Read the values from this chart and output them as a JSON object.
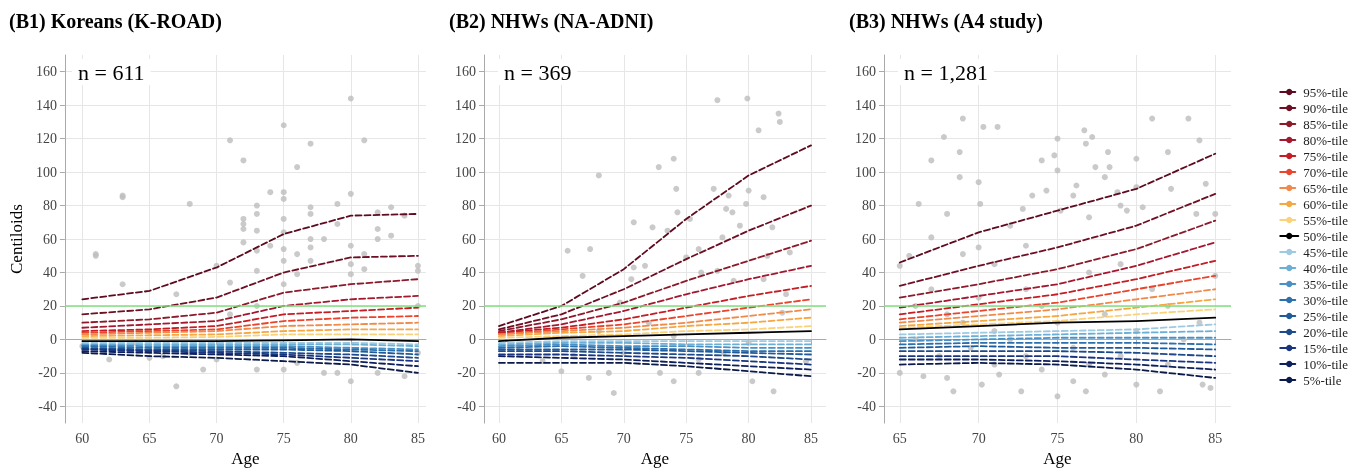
{
  "chart_data": [
    {
      "type": "line",
      "title": "(B1) Koreans (K-ROAD)",
      "xlabel": "Age",
      "ylabel": "Centiloids",
      "annotations": [
        "n = 611"
      ],
      "x": [
        60,
        65,
        70,
        75,
        80,
        85
      ],
      "xlim": [
        58.7,
        85.6
      ],
      "xticks": [
        60,
        65,
        70,
        75,
        80,
        85
      ],
      "ylim": [
        -50,
        170
      ],
      "yticks": [
        -40,
        -20,
        0,
        20,
        40,
        60,
        80,
        100,
        120,
        140,
        160
      ],
      "grid": true,
      "legend": false,
      "marker": "none",
      "line_style": "dashed",
      "ref_lines": [
        {
          "axis": "y",
          "value": 20,
          "color": "#7ee27e"
        }
      ],
      "series": [
        {
          "type": "scatter",
          "marker": "circle",
          "color": "#bdbdbd",
          "x": [
            61,
            61,
            63,
            63,
            63,
            67,
            67,
            68,
            69,
            70,
            71,
            71,
            72,
            72,
            72,
            72,
            72,
            73,
            73,
            73,
            73,
            73,
            73,
            74,
            74,
            75,
            75,
            75,
            75,
            75,
            75,
            75,
            75,
            75,
            76,
            76,
            76,
            77,
            77,
            77,
            77,
            77,
            77,
            78,
            78,
            79,
            79,
            79,
            80,
            80,
            80,
            80,
            80,
            80,
            81,
            81,
            81,
            82,
            82,
            82,
            82,
            83,
            83,
            84,
            84,
            85,
            85,
            85,
            85,
            60,
            62,
            65,
            70,
            64,
            66,
            68,
            71,
            73,
            76
          ],
          "values": [
            51,
            50,
            86,
            85,
            33,
            27,
            -28,
            81,
            -18,
            44,
            119,
            34,
            107,
            72,
            69,
            66,
            58,
            80,
            75,
            65,
            53,
            41,
            -18,
            88,
            56,
            128,
            88,
            84,
            72,
            64,
            54,
            47,
            33,
            -18,
            103,
            51,
            39,
            117,
            79,
            75,
            60,
            55,
            47,
            60,
            -20,
            81,
            69,
            -20,
            144,
            87,
            56,
            45,
            39,
            -25,
            119,
            51,
            42,
            76,
            66,
            60,
            -20,
            79,
            62,
            74,
            -22,
            44,
            41,
            20,
            -8,
            -4,
            -12,
            -11,
            -12,
            -2,
            -10,
            -8,
            15,
            20,
            -14
          ]
        },
        {
          "color": "#5e0a1f",
          "values": [
            24,
            29,
            43,
            63,
            74,
            75
          ]
        },
        {
          "color": "#6e0f24",
          "values": [
            15,
            18,
            25,
            40,
            49,
            50
          ]
        },
        {
          "color": "#8b1a2b",
          "values": [
            10,
            12,
            16,
            28,
            33,
            36
          ]
        },
        {
          "color": "#a3182f",
          "values": [
            7,
            9,
            11,
            20,
            24,
            26
          ]
        },
        {
          "color": "#c41e24",
          "values": [
            5,
            6,
            8,
            15,
            17,
            19
          ]
        },
        {
          "color": "#e8452c",
          "values": [
            4,
            5,
            6,
            11,
            13,
            14
          ]
        },
        {
          "color": "#f08a4b",
          "values": [
            3,
            4,
            5,
            8,
            9,
            10
          ]
        },
        {
          "color": "#f5a742",
          "values": [
            2,
            2.5,
            3,
            5,
            6,
            6
          ]
        },
        {
          "color": "#fad27a",
          "values": [
            1,
            1,
            1.5,
            3,
            3,
            3
          ]
        },
        {
          "color": "#000000",
          "line_style": "solid",
          "values": [
            -1,
            -1,
            -1,
            -0.5,
            0,
            -1
          ]
        },
        {
          "color": "#9ecae1",
          "values": [
            -2,
            -2,
            -2,
            -2,
            -2,
            -3
          ]
        },
        {
          "color": "#6baed6",
          "values": [
            -3,
            -3,
            -3,
            -3,
            -3,
            -4
          ]
        },
        {
          "color": "#4a90c4",
          "values": [
            -3.5,
            -4,
            -4,
            -4,
            -5,
            -6
          ]
        },
        {
          "color": "#2c6fad",
          "values": [
            -4,
            -5,
            -5,
            -5,
            -6,
            -7
          ]
        },
        {
          "color": "#1f5a9a",
          "values": [
            -5,
            -6,
            -6,
            -6,
            -7,
            -9
          ]
        },
        {
          "color": "#1c4a8a",
          "values": [
            -5.5,
            -6.5,
            -7,
            -8,
            -9,
            -11
          ]
        },
        {
          "color": "#1a3580",
          "values": [
            -6,
            -7,
            -8,
            -9,
            -11,
            -13
          ]
        },
        {
          "color": "#0d1f5c",
          "values": [
            -7,
            -8,
            -9,
            -10,
            -13,
            -16
          ]
        },
        {
          "color": "#0b1a4a",
          "values": [
            -8,
            -10,
            -11,
            -13,
            -15,
            -20
          ]
        }
      ]
    },
    {
      "type": "line",
      "title": "(B2) NHWs (NA-ADNI)",
      "xlabel": "Age",
      "annotations": [
        "n = 369"
      ],
      "x": [
        60,
        65,
        70,
        75,
        80,
        85
      ],
      "xlim": [
        58.8,
        86.2
      ],
      "xticks": [
        60,
        65,
        70,
        75,
        80,
        85
      ],
      "ylim": [
        -50,
        170
      ],
      "yticks": [
        -40,
        -20,
        0,
        20,
        40,
        60,
        80,
        100,
        120,
        140,
        160
      ],
      "grid": true,
      "legend": false,
      "marker": "none",
      "line_style": "dashed",
      "ref_lines": [
        {
          "axis": "y",
          "value": 20,
          "color": "#7ee27e"
        }
      ],
      "series": [
        {
          "type": "scatter",
          "marker": "circle",
          "color": "#bdbdbd",
          "x": [
            65,
            65.5,
            66.7,
            67.3,
            67.2,
            68,
            68.8,
            69.2,
            69.7,
            70.8,
            70.6,
            70.8,
            71.7,
            72.3,
            72.8,
            72.9,
            73.5,
            74,
            74.2,
            74.3,
            74,
            75.3,
            75,
            76,
            76.2,
            76,
            77.2,
            77.5,
            77.5,
            77.9,
            78.2,
            78.4,
            78.7,
            78.8,
            79.3,
            79.8,
            79.9,
            80,
            80.3,
            80.8,
            81.2,
            81.2,
            81.5,
            81.9,
            82,
            82.4,
            82.5,
            82.7,
            83.3,
            83,
            84.6,
            66,
            68,
            70,
            72,
            74,
            76,
            78,
            80,
            63.5,
            61.5,
            64
          ],
          "values": [
            -19,
            53,
            38,
            54,
            -23,
            98,
            -20,
            -32,
            22,
            43,
            36,
            70,
            44,
            67,
            103,
            -20,
            65,
            108,
            90,
            76,
            -25,
            72,
            49,
            54,
            40,
            -20,
            90,
            143,
            41,
            61,
            78,
            86,
            76,
            35,
            68,
            81,
            144,
            89,
            -25,
            125,
            85,
            36,
            50,
            67,
            -31,
            135,
            130,
            16,
            52,
            27,
            -13,
            -10,
            5,
            -8,
            10,
            2,
            -12,
            -8,
            -2,
            -13,
            -4,
            5
          ]
        },
        {
          "color": "#5e0a1f",
          "values": [
            8,
            20,
            42,
            72,
            98,
            116
          ]
        },
        {
          "color": "#6e0f24",
          "values": [
            6,
            15,
            30,
            48,
            65,
            80
          ]
        },
        {
          "color": "#8b1a2b",
          "values": [
            5,
            12,
            22,
            35,
            47,
            59
          ]
        },
        {
          "color": "#a3182f",
          "values": [
            4,
            9,
            17,
            27,
            36,
            44
          ]
        },
        {
          "color": "#c41e24",
          "values": [
            4,
            7,
            12,
            19,
            26,
            32
          ]
        },
        {
          "color": "#e8452c",
          "values": [
            3,
            6,
            9,
            14,
            19,
            24
          ]
        },
        {
          "color": "#f08a4b",
          "values": [
            3,
            5,
            7,
            10,
            14,
            18
          ]
        },
        {
          "color": "#f5a742",
          "values": [
            2,
            4,
            5,
            8,
            10,
            13
          ]
        },
        {
          "color": "#fad27a",
          "values": [
            1,
            2,
            3,
            5,
            6,
            8
          ]
        },
        {
          "color": "#000000",
          "line_style": "solid",
          "values": [
            -1,
            1,
            2,
            3,
            4,
            5
          ]
        },
        {
          "color": "#9ecae1",
          "values": [
            -2,
            -1,
            -1,
            -1,
            -1,
            -1
          ]
        },
        {
          "color": "#6baed6",
          "values": [
            -3,
            -2,
            -2,
            -3,
            -3,
            -3
          ]
        },
        {
          "color": "#4a90c4",
          "values": [
            -4,
            -3,
            -4,
            -4,
            -5,
            -5
          ]
        },
        {
          "color": "#2c6fad",
          "values": [
            -5,
            -4,
            -5,
            -6,
            -7,
            -7
          ]
        },
        {
          "color": "#1f5a9a",
          "values": [
            -6,
            -6,
            -6,
            -7,
            -8,
            -9
          ]
        },
        {
          "color": "#1c4a8a",
          "values": [
            -7,
            -7,
            -8,
            -9,
            -10,
            -12
          ]
        },
        {
          "color": "#1a3580",
          "values": [
            -9,
            -9,
            -10,
            -11,
            -13,
            -15
          ]
        },
        {
          "color": "#0d1f5c",
          "values": [
            -10,
            -11,
            -12,
            -14,
            -16,
            -18
          ]
        },
        {
          "color": "#0b1a4a",
          "values": [
            -14,
            -14,
            -14,
            -16,
            -19,
            -22
          ]
        }
      ]
    },
    {
      "type": "line",
      "title": "(B3) NHWs (A4 study)",
      "xlabel": "Age",
      "annotations": [
        "n = 1,281"
      ],
      "x": [
        65,
        70,
        75,
        80,
        85
      ],
      "xlim": [
        64,
        86
      ],
      "xticks": [
        65,
        70,
        75,
        80,
        85
      ],
      "ylim": [
        -50,
        170
      ],
      "yticks": [
        -40,
        -20,
        0,
        20,
        40,
        60,
        80,
        100,
        120,
        140,
        160
      ],
      "grid": true,
      "legend": "right",
      "marker": "none",
      "line_style": "dashed",
      "ref_lines": [
        {
          "axis": "y",
          "value": 20,
          "color": "#7ee27e"
        }
      ],
      "series": [
        {
          "type": "scatter",
          "marker": "circle",
          "color": "#bdbdbd",
          "x": [
            65,
            65.6,
            66.2,
            67,
            67,
            67.8,
            68,
            68.8,
            68.8,
            69,
            69,
            70,
            70.1,
            70.3,
            71.2,
            70,
            71,
            72,
            72.8,
            73,
            73.4,
            74,
            74.3,
            74.8,
            75,
            75,
            75,
            75.2,
            76,
            76.2,
            76.7,
            76.8,
            77.2,
            77.4,
            77,
            78,
            78.2,
            78.3,
            78.8,
            79,
            79.4,
            80,
            80,
            80.4,
            81,
            82,
            82.2,
            83.3,
            84,
            83.8,
            84.4,
            85,
            66.5,
            68,
            68.4,
            70.2,
            71.3,
            72.7,
            74,
            76,
            76.8,
            78,
            80,
            81.5,
            84.2,
            84.7,
            66,
            67,
            68,
            69,
            70,
            71,
            72,
            73,
            74,
            75,
            76,
            77,
            78,
            79,
            80,
            81,
            82,
            83,
            84,
            85,
            65,
            66,
            67.5,
            69.5,
            71,
            73,
            77,
            79,
            82
          ],
          "values": [
            44,
            50,
            81,
            61,
            107,
            121,
            75,
            112,
            97,
            132,
            51,
            94,
            81,
            127,
            127,
            55,
            45,
            68,
            78,
            56,
            86,
            107,
            89,
            110,
            120,
            101,
            -34,
            77,
            86,
            92,
            125,
            117,
            121,
            103,
            73,
            97,
            112,
            103,
            88,
            80,
            77,
            108,
            91,
            79,
            132,
            112,
            90,
            132,
            119,
            75,
            93,
            75,
            -22,
            -23,
            -31,
            -27,
            -21,
            -31,
            -18,
            -25,
            -31,
            -21,
            -27,
            -31,
            -27,
            -29,
            20,
            30,
            15,
            10,
            25,
            5,
            0,
            30,
            20,
            10,
            -5,
            40,
            15,
            45,
            5,
            30,
            20,
            0,
            10,
            38,
            -20,
            0,
            -10,
            -5,
            -15,
            -10,
            -15,
            -10,
            -15
          ]
        },
        {
          "name": "95%-tile",
          "color": "#5e0a1f",
          "values": [
            46,
            64,
            77,
            90,
            111
          ]
        },
        {
          "name": "90%-tile",
          "color": "#6e0f24",
          "values": [
            32,
            44,
            55,
            68,
            87
          ]
        },
        {
          "name": "85%-tile",
          "color": "#8b1a2b",
          "values": [
            25,
            33,
            42,
            54,
            71
          ]
        },
        {
          "name": "80%-tile",
          "color": "#a3182f",
          "values": [
            19,
            26,
            33,
            44,
            58
          ]
        },
        {
          "name": "75%-tile",
          "color": "#c41e24",
          "values": [
            15,
            21,
            27,
            36,
            47
          ]
        },
        {
          "name": "70%-tile",
          "color": "#e8452c",
          "values": [
            12,
            17,
            22,
            30,
            38
          ]
        },
        {
          "name": "65%-tile",
          "color": "#f08a4b",
          "values": [
            10,
            14,
            18,
            24,
            30
          ]
        },
        {
          "name": "60%-tile",
          "color": "#f5a742",
          "values": [
            8,
            11,
            14,
            19,
            24
          ]
        },
        {
          "name": "55%-tile",
          "color": "#fad27a",
          "values": [
            7,
            9,
            11,
            15,
            18
          ]
        },
        {
          "name": "50%-tile",
          "color": "#000000",
          "line_style": "solid",
          "values": [
            6,
            8,
            10,
            11,
            13
          ]
        },
        {
          "name": "45%-tile",
          "color": "#9ecae1",
          "values": [
            3,
            4,
            5,
            6,
            9
          ]
        },
        {
          "name": "40%-tile",
          "color": "#6baed6",
          "values": [
            1,
            2,
            3,
            4,
            5
          ]
        },
        {
          "name": "35%-tile",
          "color": "#4a90c4",
          "values": [
            -1,
            0,
            1,
            1,
            1
          ]
        },
        {
          "name": "30%-tile",
          "color": "#2c6fad",
          "values": [
            -3,
            -2,
            -2,
            -2,
            -3
          ]
        },
        {
          "name": "25%-tile",
          "color": "#1f5a9a",
          "values": [
            -5,
            -4,
            -5,
            -5,
            -6
          ]
        },
        {
          "name": "20%-tile",
          "color": "#1c4a8a",
          "values": [
            -7,
            -7,
            -7,
            -8,
            -10
          ]
        },
        {
          "name": "15%-tile",
          "color": "#1a3580",
          "values": [
            -10,
            -10,
            -10,
            -12,
            -14
          ]
        },
        {
          "name": "10%-tile",
          "color": "#0d1f5c",
          "values": [
            -12,
            -12,
            -13,
            -15,
            -18
          ]
        },
        {
          "name": "5%-tile",
          "color": "#0b1a4a",
          "values": [
            -15,
            -14,
            -15,
            -18,
            -23
          ]
        }
      ]
    }
  ]
}
